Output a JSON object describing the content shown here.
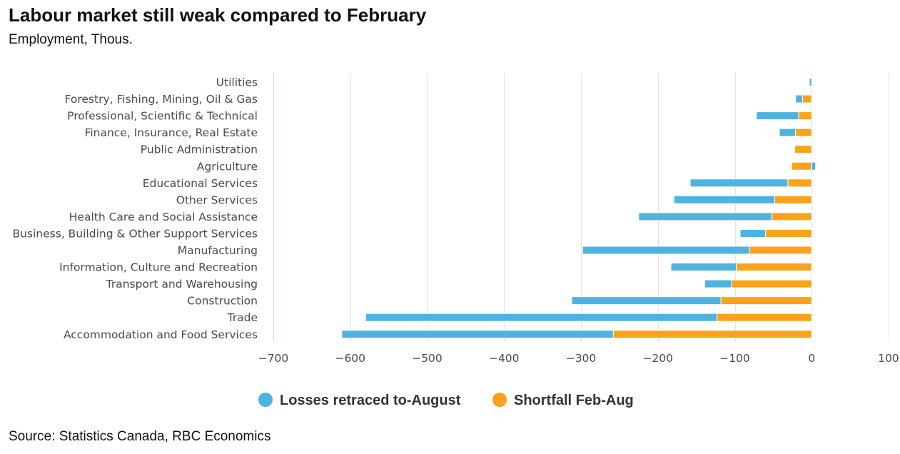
{
  "title": "Labour market still weak compared to February",
  "subtitle": "Employment, Thous.",
  "source": "Source: Statistics Canada, RBC Economics",
  "colors": {
    "retraced": "#4fb3e0",
    "shortfall": "#f9a31b",
    "grid": "#e3e3e3",
    "axis": "#ccd6eb"
  },
  "chart_data": {
    "type": "bar",
    "orientation": "horizontal",
    "stacked": true,
    "categories": [
      "Utilities",
      "Forestry, Fishing, Mining, Oil & Gas",
      "Professional, Scientific & Technical",
      "Finance, Insurance, Real Estate",
      "Public Administration",
      "Agriculture",
      "Educational Services",
      "Other Services",
      "Health Care and Social Assistance",
      "Business, Building & Other Support Services",
      "Manufacturing",
      "Information, Culture and Recreation",
      "Transport and Warehousing",
      "Construction",
      "Trade",
      "Accommodation and Food Services"
    ],
    "series": [
      {
        "name": "Shortfall Feb-Aug",
        "values": [
          0,
          -12,
          -17,
          -21,
          -22,
          -26,
          -31,
          -48,
          -52,
          -60,
          -81,
          -98,
          -104,
          -118,
          -123,
          -258
        ],
        "color": "#f9a31b"
      },
      {
        "name": "Losses retraced to-August",
        "values": [
          -3,
          -9,
          -55,
          -21,
          0,
          5,
          -127,
          -131,
          -173,
          -33,
          -217,
          -85,
          -35,
          -194,
          -457,
          -353
        ],
        "color": "#4fb3e0"
      }
    ],
    "xlim": [
      -700,
      100
    ],
    "xticks": [
      -700,
      -600,
      -500,
      -400,
      -300,
      -200,
      -100,
      0,
      100
    ],
    "xtick_labels": [
      "−700",
      "−600",
      "−500",
      "−400",
      "−300",
      "−200",
      "−100",
      "0",
      "100"
    ],
    "legend": [
      {
        "label": "Losses retraced to-August",
        "color": "#4fb3e0"
      },
      {
        "label": "Shortfall Feb-Aug",
        "color": "#f9a31b"
      }
    ],
    "legend_position": "bottom-center",
    "grid": true
  }
}
